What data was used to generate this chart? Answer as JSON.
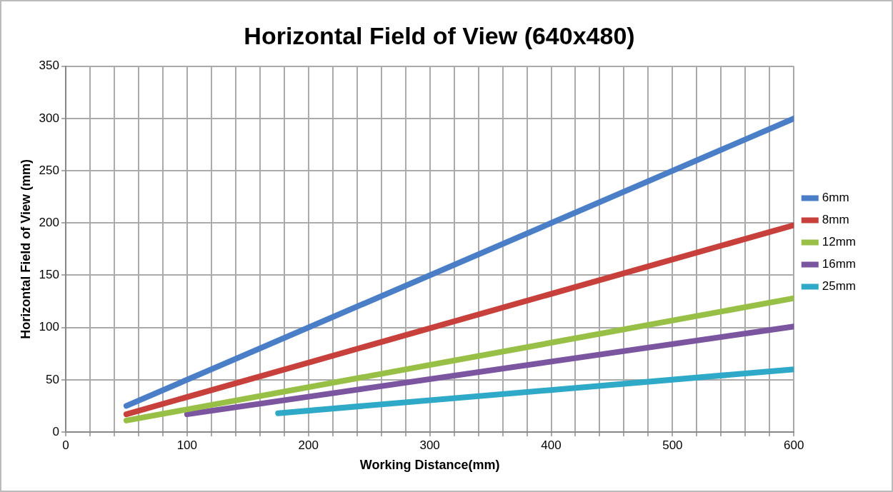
{
  "chart_data": {
    "type": "line",
    "title": "Horizontal Field of View (640x480)",
    "xlabel": "Working Distance(mm)",
    "ylabel": "Horizontal Field of View (mm)",
    "series": [
      {
        "name": "6mm",
        "color": "#4a7ec7",
        "x": [
          50,
          600
        ],
        "values": [
          25,
          300
        ]
      },
      {
        "name": "8mm",
        "color": "#c8403b",
        "x": [
          50,
          600
        ],
        "values": [
          17,
          198
        ]
      },
      {
        "name": "12mm",
        "color": "#98c046",
        "x": [
          50,
          600
        ],
        "values": [
          11,
          128
        ]
      },
      {
        "name": "16mm",
        "color": "#7c55a0",
        "x": [
          100,
          600
        ],
        "values": [
          17,
          101
        ]
      },
      {
        "name": "25mm",
        "color": "#2fa9c8",
        "x": [
          175,
          600
        ],
        "values": [
          18,
          60
        ]
      }
    ],
    "xlim": [
      0,
      600
    ],
    "xticks": [
      0,
      {
        "value": 20,
        "label": null
      },
      {
        "value": 40,
        "label": null
      },
      {
        "value": 60,
        "label": null
      },
      {
        "value": 80,
        "label": null
      },
      100,
      {
        "value": 120,
        "label": null
      },
      {
        "value": 140,
        "label": null
      },
      {
        "value": 160,
        "label": null
      },
      {
        "value": 180,
        "label": null
      },
      200,
      {
        "value": 220,
        "label": null
      },
      {
        "value": 240,
        "label": null
      },
      {
        "value": 260,
        "label": null
      },
      {
        "value": 280,
        "label": null
      },
      300,
      {
        "value": 320,
        "label": null
      },
      {
        "value": 340,
        "label": null
      },
      {
        "value": 360,
        "label": null
      },
      {
        "value": 380,
        "label": null
      },
      400,
      {
        "value": 420,
        "label": null
      },
      {
        "value": 440,
        "label": null
      },
      {
        "value": 460,
        "label": null
      },
      {
        "value": 480,
        "label": null
      },
      500,
      {
        "value": 520,
        "label": null
      },
      {
        "value": 540,
        "label": null
      },
      {
        "value": 560,
        "label": null
      },
      {
        "value": 580,
        "label": null
      },
      600
    ],
    "ylim": [
      0,
      350
    ],
    "yticks": [
      0,
      50,
      100,
      150,
      200,
      250,
      300,
      350
    ],
    "grid": true,
    "legend": "right",
    "marker": "none",
    "line_style": "solid"
  }
}
